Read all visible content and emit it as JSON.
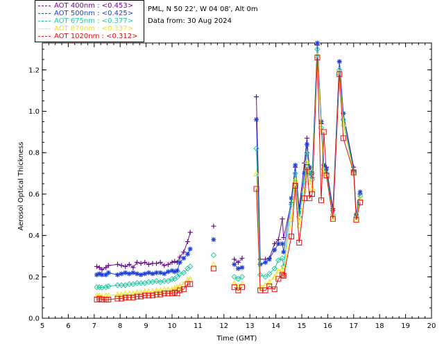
{
  "header": {
    "location": "PML, N 50 22', W 04 08', Alt 0m",
    "date_line": "Data from: 30 Aug 2024"
  },
  "legend": [
    {
      "label": "AOT  400nm : <0.453>",
      "color": "#6a0d8a"
    },
    {
      "label": "AOT  500nm : <0.425>",
      "color": "#1f3fdc"
    },
    {
      "label": "AOT  675nm : <0.377>",
      "color": "#22c7a0"
    },
    {
      "label": "AOT  870nm : <0.337>",
      "color": "#f0e020"
    },
    {
      "label": "AOT 1020nm : <0.312>",
      "color": "#e01010"
    }
  ],
  "chart_data": {
    "type": "line",
    "xlabel": "Time (GMT)",
    "ylabel": "Aerosol Optical Thickness",
    "xlim": [
      5,
      20
    ],
    "ylim": [
      0,
      1.33
    ],
    "x_ticks": [
      "5",
      "6",
      "7",
      "8",
      "9",
      "10",
      "11",
      "12",
      "13",
      "14",
      "15",
      "16",
      "17",
      "18",
      "19",
      "20"
    ],
    "y_ticks": [
      "0.0",
      "0.2",
      "0.4",
      "0.6",
      "0.8",
      "1.0",
      "1.2"
    ],
    "grid": false,
    "legend_position": "top-left, outside plot",
    "x": [
      7.1,
      7.2,
      7.3,
      7.45,
      7.55,
      7.9,
      8.05,
      8.2,
      8.35,
      8.5,
      8.65,
      8.8,
      8.95,
      9.1,
      9.25,
      9.4,
      9.55,
      9.7,
      9.85,
      10.0,
      10.1,
      10.2,
      10.3,
      10.45,
      10.6,
      10.7,
      11.6,
      12.4,
      12.55,
      12.7,
      13.25,
      13.4,
      13.6,
      13.75,
      13.95,
      14.1,
      14.25,
      14.3,
      14.6,
      14.75,
      14.9,
      15.1,
      15.2,
      15.3,
      15.4,
      15.6,
      15.75,
      15.85,
      15.95,
      16.2,
      16.45,
      16.6,
      17.0,
      17.1,
      17.25
    ],
    "series": [
      {
        "name": "AOT  400nm",
        "marker": "+",
        "values": [
          0.25,
          0.245,
          0.235,
          0.245,
          0.255,
          0.26,
          0.255,
          0.25,
          0.26,
          0.245,
          0.27,
          0.265,
          0.27,
          0.26,
          0.265,
          0.265,
          0.27,
          0.255,
          0.26,
          0.27,
          0.275,
          0.27,
          0.295,
          0.32,
          0.37,
          0.415,
          0.445,
          0.285,
          0.27,
          0.29,
          1.07,
          0.285,
          0.285,
          0.29,
          0.36,
          0.38,
          0.48,
          0.39,
          0.56,
          0.73,
          0.53,
          0.75,
          0.87,
          0.7,
          0.68,
          1.32,
          0.94,
          0.74,
          0.73,
          0.53,
          1.24,
          0.99,
          0.73,
          0.5,
          0.6
        ]
      },
      {
        "name": "AOT  500nm",
        "marker": "*",
        "values": [
          0.21,
          0.215,
          0.21,
          0.21,
          0.22,
          0.21,
          0.215,
          0.22,
          0.215,
          0.22,
          0.215,
          0.21,
          0.215,
          0.22,
          0.215,
          0.22,
          0.22,
          0.215,
          0.225,
          0.23,
          0.225,
          0.23,
          0.27,
          0.29,
          0.31,
          0.335,
          0.38,
          0.26,
          0.24,
          0.245,
          0.96,
          0.26,
          0.27,
          0.285,
          0.33,
          0.36,
          0.36,
          0.32,
          0.58,
          0.74,
          0.51,
          0.7,
          0.84,
          0.73,
          0.7,
          1.33,
          0.95,
          0.74,
          0.72,
          0.52,
          1.24,
          0.99,
          0.71,
          0.5,
          0.61
        ]
      },
      {
        "name": "AOT  675nm",
        "marker": "diamond",
        "values": [
          0.15,
          0.15,
          0.148,
          0.15,
          0.155,
          0.16,
          0.16,
          0.16,
          0.165,
          0.165,
          0.17,
          0.17,
          0.17,
          0.175,
          0.175,
          0.18,
          0.175,
          0.18,
          0.18,
          0.19,
          0.19,
          0.2,
          0.215,
          0.22,
          0.24,
          0.25,
          0.305,
          0.2,
          0.19,
          0.2,
          0.82,
          0.21,
          0.2,
          0.215,
          0.24,
          0.28,
          0.29,
          0.25,
          0.55,
          0.7,
          0.49,
          0.66,
          0.8,
          0.7,
          0.67,
          1.3,
          0.92,
          0.72,
          0.7,
          0.5,
          1.2,
          0.96,
          0.71,
          0.49,
          0.59
        ]
      },
      {
        "name": "AOT  870nm",
        "marker": "triangle",
        "values": [
          0.11,
          0.11,
          0.105,
          0.11,
          0.11,
          0.115,
          0.115,
          0.12,
          0.12,
          0.12,
          0.125,
          0.125,
          0.13,
          0.13,
          0.13,
          0.135,
          0.135,
          0.14,
          0.14,
          0.14,
          0.145,
          0.15,
          0.155,
          0.165,
          0.185,
          0.19,
          0.26,
          0.17,
          0.155,
          0.165,
          0.7,
          0.155,
          0.16,
          0.175,
          0.2,
          0.23,
          0.24,
          0.21,
          0.48,
          0.67,
          0.45,
          0.62,
          0.76,
          0.66,
          0.63,
          1.27,
          0.9,
          0.7,
          0.69,
          0.49,
          1.19,
          0.94,
          0.7,
          0.48,
          0.58
        ]
      },
      {
        "name": "AOT 1020nm",
        "marker": "square",
        "values": [
          0.09,
          0.095,
          0.09,
          0.09,
          0.09,
          0.095,
          0.095,
          0.1,
          0.1,
          0.1,
          0.105,
          0.105,
          0.11,
          0.11,
          0.11,
          0.115,
          0.115,
          0.12,
          0.12,
          0.12,
          0.125,
          0.12,
          0.135,
          0.14,
          0.165,
          0.165,
          0.24,
          0.15,
          0.135,
          0.15,
          0.625,
          0.135,
          0.135,
          0.155,
          0.14,
          0.19,
          0.21,
          0.205,
          0.395,
          0.64,
          0.365,
          0.58,
          0.73,
          0.58,
          0.6,
          1.26,
          0.57,
          0.9,
          0.69,
          0.48,
          1.18,
          0.87,
          0.705,
          0.475,
          0.56
        ]
      }
    ]
  }
}
